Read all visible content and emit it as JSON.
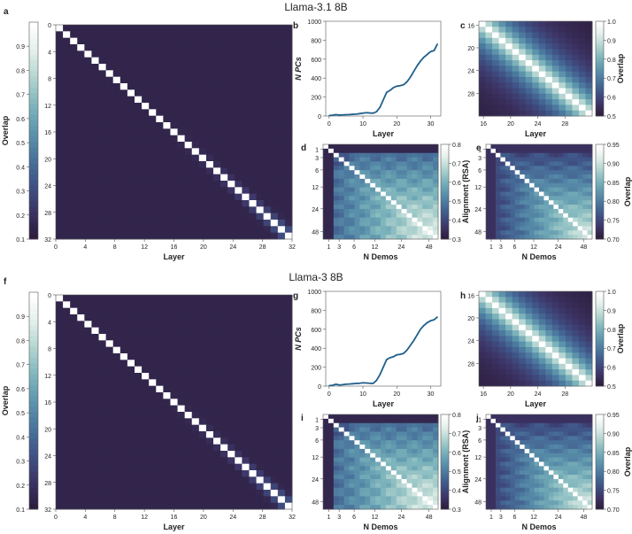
{
  "figure": {
    "sections": [
      {
        "title": "Llama-3.1 8B"
      },
      {
        "title": "Llama-3 8B"
      }
    ]
  },
  "colors": {
    "cmap": [
      "#2d1e3e",
      "#3d3567",
      "#3f5487",
      "#4a759d",
      "#5e96ad",
      "#80b6bd",
      "#b3d4d0",
      "#e3efea",
      "#ffffff"
    ],
    "line": "#1f5f8b"
  },
  "chart_data": [
    {
      "panel": "a",
      "type": "heatmap",
      "title": "",
      "xlabel": "Layer",
      "ylabel": "",
      "n": 33,
      "xticks": [
        "0",
        "4",
        "8",
        "12",
        "16",
        "20",
        "24",
        "28",
        "32"
      ],
      "yticks": [
        "0",
        "4",
        "8",
        "12",
        "16",
        "20",
        "24",
        "28",
        "32"
      ],
      "colorbar": {
        "label": "Overlap",
        "range": [
          0.1,
          1.0
        ],
        "ticks": [
          "0.1",
          "0.2",
          "0.3",
          "0.4",
          "0.5",
          "0.6",
          "0.7",
          "0.8",
          "0.9"
        ]
      }
    },
    {
      "panel": "b",
      "type": "line",
      "xlabel": "Layer",
      "ylabel": "N PCs",
      "xlim": [
        -1,
        33
      ],
      "ylim": [
        0,
        1000
      ],
      "xticks": [
        "0",
        "10",
        "20",
        "30"
      ],
      "yticks": [
        "0",
        "200",
        "400",
        "600",
        "800",
        "1000"
      ],
      "x": [
        0,
        1,
        2,
        3,
        4,
        5,
        6,
        7,
        8,
        9,
        10,
        11,
        12,
        13,
        14,
        15,
        16,
        17,
        18,
        19,
        20,
        21,
        22,
        23,
        24,
        25,
        26,
        27,
        28,
        29,
        30,
        31,
        32
      ],
      "values": [
        5,
        8,
        15,
        10,
        12,
        14,
        15,
        18,
        20,
        25,
        30,
        35,
        32,
        30,
        45,
        90,
        170,
        250,
        270,
        300,
        315,
        320,
        330,
        360,
        410,
        470,
        530,
        580,
        620,
        650,
        680,
        690,
        760
      ]
    },
    {
      "panel": "c",
      "type": "heatmap",
      "xlabel": "Layer",
      "n": 17,
      "xticks": [
        "16",
        "20",
        "24",
        "28"
      ],
      "yticks": [
        "16",
        "20",
        "24",
        "28"
      ],
      "colorbar": {
        "label": "Overlap",
        "range": [
          0.5,
          1.0
        ],
        "ticks": [
          "0.5",
          "0.6",
          "0.7",
          "0.8",
          "0.9",
          "1.0"
        ]
      }
    },
    {
      "panel": "d",
      "type": "heatmap",
      "xlabel": "N Demos",
      "n": 22,
      "xticks": [
        "1",
        "3",
        "6",
        "12",
        "24",
        "48"
      ],
      "yticks": [
        "1",
        "3",
        "6",
        "12",
        "24",
        "48"
      ],
      "colorbar": {
        "label": "Alignment (RSA)",
        "range": [
          0.3,
          0.8
        ],
        "ticks": [
          "0.3",
          "0.4",
          "0.5",
          "0.6",
          "0.7",
          "0.8"
        ]
      }
    },
    {
      "panel": "e",
      "type": "heatmap",
      "xlabel": "N Demos",
      "n": 22,
      "xticks": [
        "1",
        "3",
        "6",
        "12",
        "24",
        "48"
      ],
      "yticks": [
        "1",
        "3",
        "6",
        "12",
        "24",
        "48"
      ],
      "colorbar": {
        "label": "Overlap",
        "range": [
          0.7,
          0.95
        ],
        "ticks": [
          "0.70",
          "0.75",
          "0.80",
          "0.85",
          "0.90",
          "0.95"
        ]
      }
    },
    {
      "panel": "f",
      "type": "heatmap",
      "xlabel": "Layer",
      "n": 33,
      "xticks": [
        "0",
        "4",
        "8",
        "12",
        "16",
        "20",
        "24",
        "28",
        "32"
      ],
      "yticks": [
        "0",
        "4",
        "8",
        "12",
        "16",
        "20",
        "24",
        "28",
        "32"
      ],
      "colorbar": {
        "label": "Overlap",
        "range": [
          0.1,
          1.0
        ],
        "ticks": [
          "0.1",
          "0.2",
          "0.3",
          "0.4",
          "0.5",
          "0.6",
          "0.7",
          "0.8",
          "0.9"
        ]
      }
    },
    {
      "panel": "g",
      "type": "line",
      "xlabel": "Layer",
      "ylabel": "N PCs",
      "xlim": [
        -1,
        33
      ],
      "ylim": [
        0,
        1000
      ],
      "xticks": [
        "0",
        "10",
        "20",
        "30"
      ],
      "yticks": [
        "0",
        "200",
        "400",
        "600",
        "800",
        "1000"
      ],
      "x": [
        0,
        1,
        2,
        3,
        4,
        5,
        6,
        7,
        8,
        9,
        10,
        11,
        12,
        13,
        14,
        15,
        16,
        17,
        18,
        19,
        20,
        21,
        22,
        23,
        24,
        25,
        26,
        27,
        28,
        29,
        30,
        31,
        32
      ],
      "values": [
        5,
        8,
        20,
        12,
        15,
        20,
        22,
        25,
        28,
        30,
        35,
        33,
        30,
        28,
        60,
        120,
        200,
        280,
        300,
        310,
        330,
        335,
        345,
        380,
        430,
        480,
        540,
        600,
        640,
        670,
        690,
        700,
        730
      ]
    },
    {
      "panel": "h",
      "type": "heatmap",
      "xlabel": "Layer",
      "n": 17,
      "xticks": [
        "16",
        "20",
        "24",
        "28"
      ],
      "yticks": [
        "16",
        "20",
        "24",
        "28"
      ],
      "colorbar": {
        "label": "Overlap",
        "range": [
          0.5,
          1.0
        ],
        "ticks": [
          "0.5",
          "0.6",
          "0.7",
          "0.8",
          "0.9",
          "1.0"
        ]
      }
    },
    {
      "panel": "i",
      "type": "heatmap",
      "xlabel": "N Demos",
      "n": 22,
      "xticks": [
        "1",
        "3",
        "6",
        "12",
        "24",
        "48"
      ],
      "yticks": [
        "1",
        "3",
        "6",
        "12",
        "24",
        "48"
      ],
      "colorbar": {
        "label": "Alignment (RSA)",
        "range": [
          0.3,
          0.8
        ],
        "ticks": [
          "0.3",
          "0.4",
          "0.5",
          "0.6",
          "0.7",
          "0.8"
        ]
      }
    },
    {
      "panel": "j",
      "type": "heatmap",
      "xlabel": "N Demos",
      "n": 22,
      "xticks": [
        "1",
        "3",
        "6",
        "12",
        "24",
        "48"
      ],
      "yticks": [
        "1",
        "3",
        "6",
        "12",
        "24",
        "48"
      ],
      "colorbar": {
        "label": "Overlap",
        "range": [
          0.7,
          0.95
        ],
        "ticks": [
          "0.70",
          "0.75",
          "0.80",
          "0.85",
          "0.90",
          "0.95"
        ]
      }
    }
  ]
}
